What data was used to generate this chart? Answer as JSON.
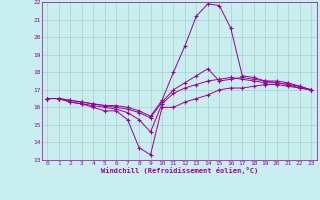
{
  "xlabel": "Windchill (Refroidissement éolien,°C)",
  "bg_color": "#c8eef0",
  "line_color": "#990099",
  "grid_color": "#aacccc",
  "xlim": [
    -0.5,
    23.5
  ],
  "ylim": [
    13,
    22
  ],
  "xticks": [
    0,
    1,
    2,
    3,
    4,
    5,
    6,
    7,
    8,
    9,
    10,
    11,
    12,
    13,
    14,
    15,
    16,
    17,
    18,
    19,
    20,
    21,
    22,
    23
  ],
  "yticks": [
    13,
    14,
    15,
    16,
    17,
    18,
    19,
    20,
    21,
    22
  ],
  "x": [
    0,
    1,
    2,
    3,
    4,
    5,
    6,
    7,
    8,
    9,
    10,
    11,
    12,
    13,
    14,
    15,
    16,
    17,
    18,
    19,
    20,
    21,
    22,
    23
  ],
  "line1": [
    16.5,
    16.5,
    16.3,
    16.2,
    16.0,
    15.8,
    15.8,
    15.3,
    13.7,
    13.3,
    16.0,
    16.0,
    16.3,
    16.5,
    16.7,
    17.0,
    17.1,
    17.1,
    17.2,
    17.3,
    17.3,
    17.2,
    17.1,
    17.0
  ],
  "line2": [
    16.5,
    16.5,
    16.3,
    16.2,
    16.1,
    16.0,
    15.9,
    15.7,
    15.3,
    14.6,
    16.2,
    16.8,
    17.1,
    17.3,
    17.5,
    17.6,
    17.7,
    17.6,
    17.5,
    17.4,
    17.4,
    17.3,
    17.1,
    17.0
  ],
  "line3": [
    16.5,
    16.5,
    16.4,
    16.3,
    16.2,
    16.1,
    16.0,
    15.9,
    15.7,
    15.4,
    16.3,
    17.0,
    17.4,
    17.8,
    18.2,
    17.5,
    17.6,
    17.7,
    17.6,
    17.5,
    17.5,
    17.4,
    17.2,
    17.0
  ],
  "line4": [
    16.5,
    16.5,
    16.4,
    16.3,
    16.2,
    16.1,
    16.1,
    16.0,
    15.8,
    15.5,
    16.4,
    18.0,
    19.5,
    21.2,
    21.9,
    21.8,
    20.5,
    17.8,
    17.7,
    17.5,
    17.4,
    17.3,
    17.2,
    17.0
  ]
}
